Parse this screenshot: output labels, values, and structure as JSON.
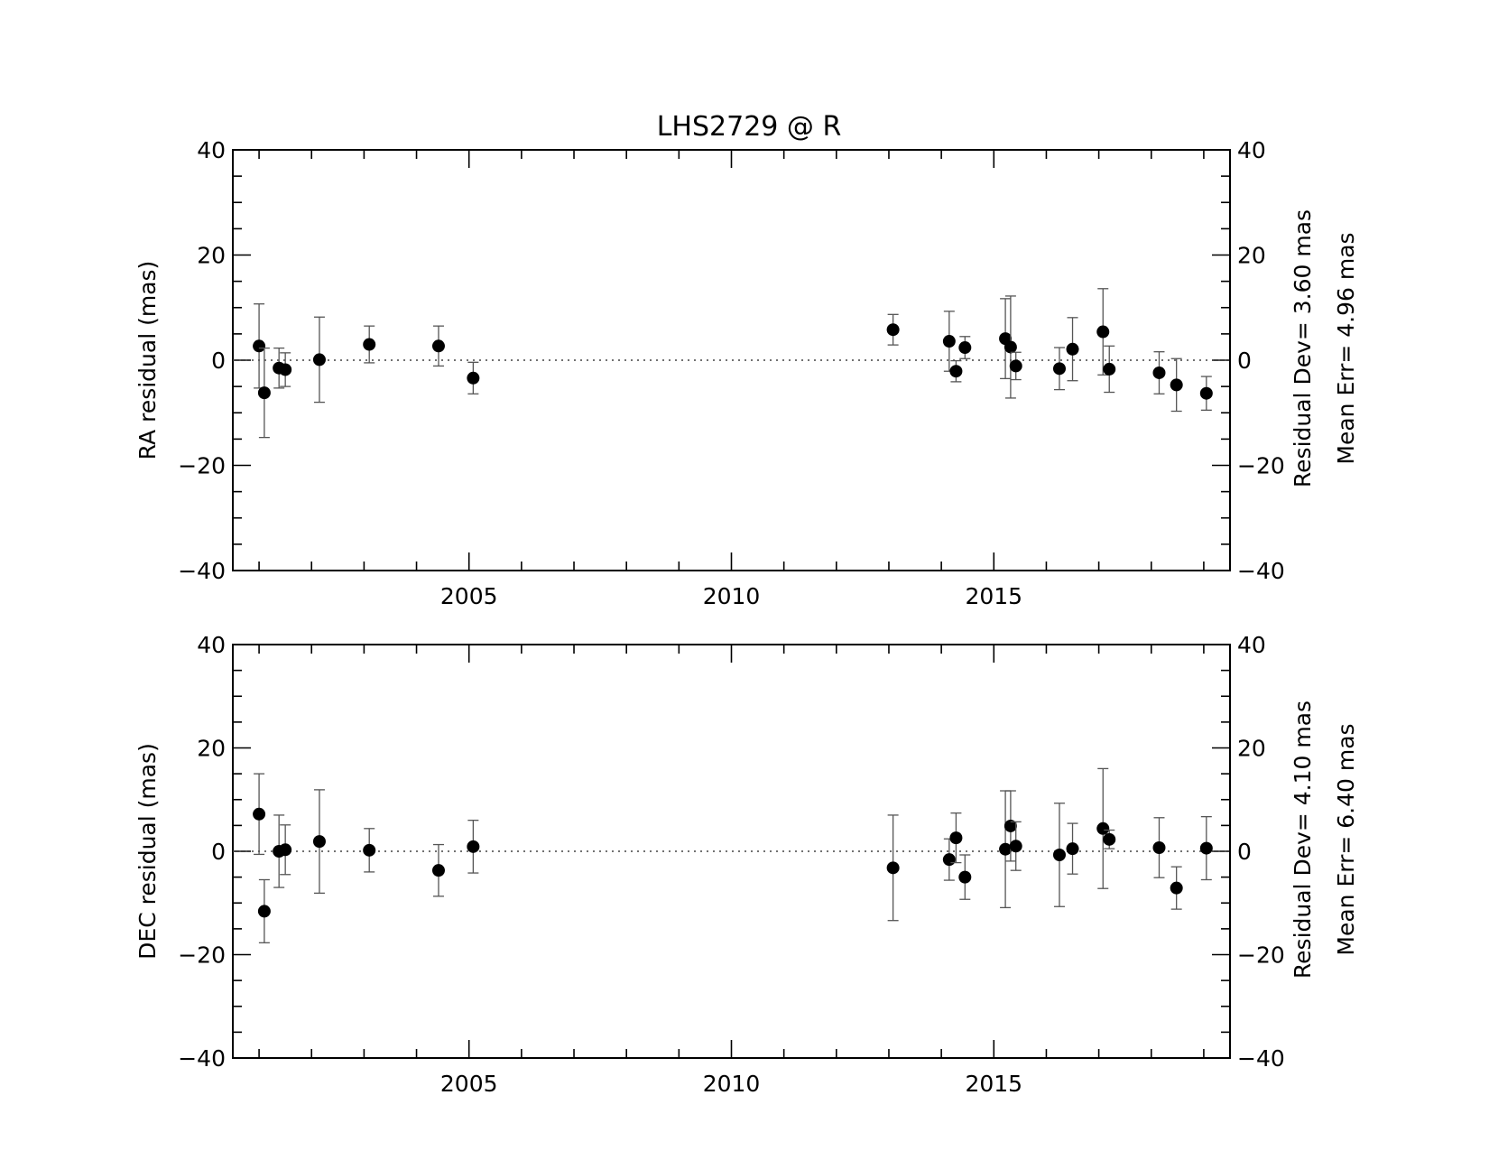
{
  "chart_data": {
    "title": "LHS2729 @ R",
    "type": "scatter",
    "x": [
      2001.0,
      2001.1,
      2001.38,
      2001.5,
      2002.15,
      2003.1,
      2004.42,
      2005.08,
      2013.08,
      2014.15,
      2014.28,
      2014.45,
      2015.22,
      2015.32,
      2015.42,
      2016.25,
      2016.5,
      2017.08,
      2017.2,
      2018.15,
      2018.48,
      2019.05
    ],
    "panels": [
      {
        "ylabel": "RA residual (mas)",
        "xlim": [
          2000.5,
          2019.5
        ],
        "ylim": [
          -40,
          40
        ],
        "yticks": [
          -40,
          -20,
          0,
          20,
          40
        ],
        "xticks": [
          2005,
          2010,
          2015
        ],
        "y": [
          2.7,
          -6.2,
          -1.5,
          -1.8,
          0.1,
          3.0,
          2.7,
          -3.4,
          5.8,
          3.6,
          -2.1,
          2.4,
          4.1,
          2.5,
          -1.1,
          -1.6,
          2.1,
          5.4,
          -1.7,
          -2.4,
          -4.7,
          -6.3
        ],
        "err": [
          8.0,
          8.5,
          3.8,
          3.2,
          8.1,
          3.5,
          3.8,
          3.0,
          2.9,
          5.7,
          2.0,
          2.1,
          7.6,
          9.7,
          2.6,
          4.0,
          6.0,
          8.2,
          4.4,
          4.0,
          5.0,
          3.2
        ],
        "stat_dev_label": "Residual Dev=   3.60  mas",
        "stat_err_label": "Mean  Err=  4.96  mas"
      },
      {
        "ylabel": "DEC residual (mas)",
        "xlim": [
          2000.5,
          2019.5
        ],
        "ylim": [
          -40,
          40
        ],
        "yticks": [
          -40,
          -20,
          0,
          20,
          40
        ],
        "xticks": [
          2005,
          2010,
          2015
        ],
        "y": [
          7.2,
          -11.6,
          0.0,
          0.3,
          1.9,
          0.2,
          -3.7,
          0.9,
          -3.2,
          -1.6,
          2.6,
          -5.0,
          0.4,
          4.9,
          1.0,
          -0.7,
          0.5,
          4.4,
          2.3,
          0.7,
          -7.1,
          0.6
        ],
        "err": [
          7.8,
          6.1,
          7.0,
          4.8,
          10.0,
          4.2,
          5.0,
          5.1,
          10.2,
          4.0,
          4.8,
          4.3,
          11.3,
          6.8,
          4.7,
          10.0,
          4.9,
          11.6,
          1.8,
          5.8,
          4.1,
          6.1
        ],
        "stat_dev_label": "Residual Dev=   4.10  mas",
        "stat_err_label": "Mean  Err=  6.40  mas"
      }
    ]
  }
}
